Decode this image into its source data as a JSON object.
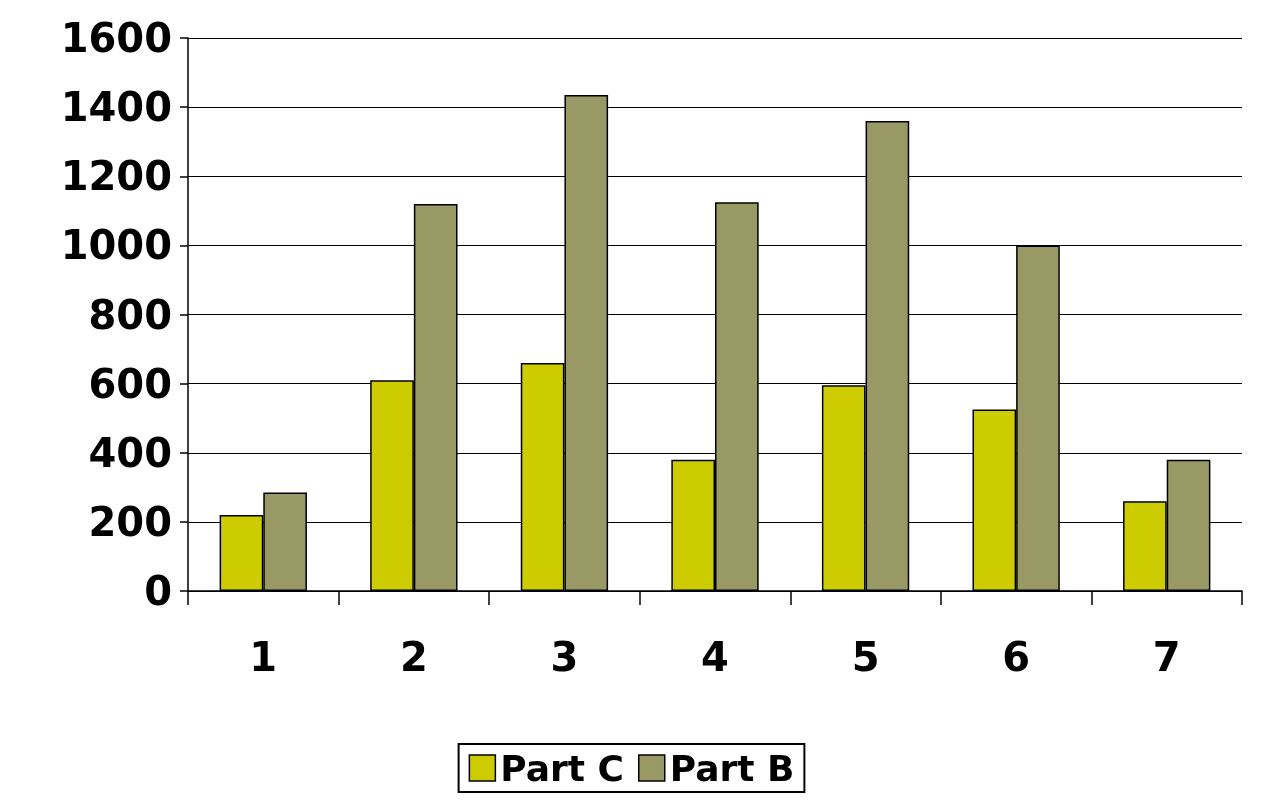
{
  "chart_data": {
    "type": "bar",
    "categories": [
      "1",
      "2",
      "3",
      "4",
      "5",
      "6",
      "7"
    ],
    "series": [
      {
        "name": "Part C",
        "color": "#cccc00",
        "values": [
          220,
          610,
          660,
          380,
          595,
          525,
          260
        ]
      },
      {
        "name": "Part B",
        "color": "#999966",
        "values": [
          285,
          1120,
          1435,
          1125,
          1360,
          1000,
          380
        ]
      }
    ],
    "ylim": [
      0,
      1600
    ],
    "yticks": [
      0,
      200,
      400,
      600,
      800,
      1000,
      1200,
      1400,
      1600
    ],
    "grid": "y",
    "legend": "bottom"
  }
}
